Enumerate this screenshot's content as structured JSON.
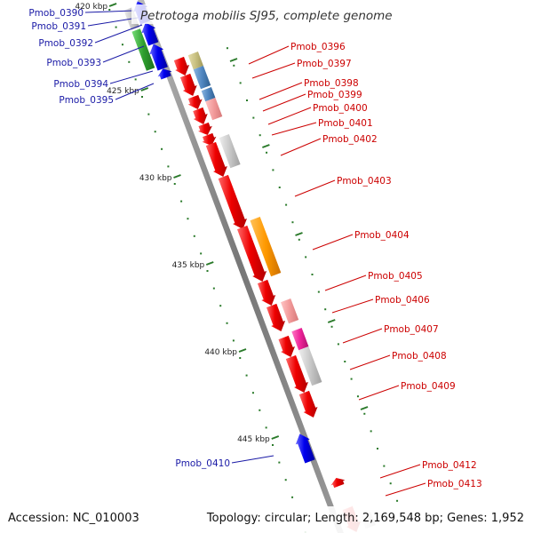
{
  "title": "Petrotoga mobilis SJ95, complete genome",
  "footer": {
    "accession": "Accession: NC_010003",
    "summary": "Topology: circular; Length: 2,169,548 bp; Genes: 1,952"
  },
  "scale_labels": [
    "420 kbp",
    "425 kbp",
    "430 kbp",
    "435 kbp",
    "440 kbp",
    "445 kbp"
  ],
  "genes_minus": [
    "Pmob_0390",
    "Pmob_0391",
    "Pmob_0392",
    "Pmob_0393",
    "Pmob_0394",
    "Pmob_0395",
    "Pmob_0410"
  ],
  "genes_plus": [
    "Pmob_0396",
    "Pmob_0397",
    "Pmob_0398",
    "Pmob_0399",
    "Pmob_0400",
    "Pmob_0401",
    "Pmob_0402",
    "Pmob_0403",
    "Pmob_0404",
    "Pmob_0405",
    "Pmob_0406",
    "Pmob_0407",
    "Pmob_0408",
    "Pmob_0409",
    "Pmob_0412",
    "Pmob_0413"
  ],
  "colors": {
    "minus_strand": "#0000ee",
    "minus_label": "#1a1aa6",
    "plus_strand": "#ee0000",
    "plus_label": "#cc0000",
    "backbone": "#888888",
    "tick": "#2a7a2a",
    "cog_green": "#33aa33",
    "cog_olive": "#c8c080",
    "cog_steel": "#5a8cc0",
    "cog_pink": "#f29a9a",
    "cog_grey": "#c8c8c8",
    "cog_orange": "#ff9900",
    "cog_magenta": "#ee2299"
  }
}
